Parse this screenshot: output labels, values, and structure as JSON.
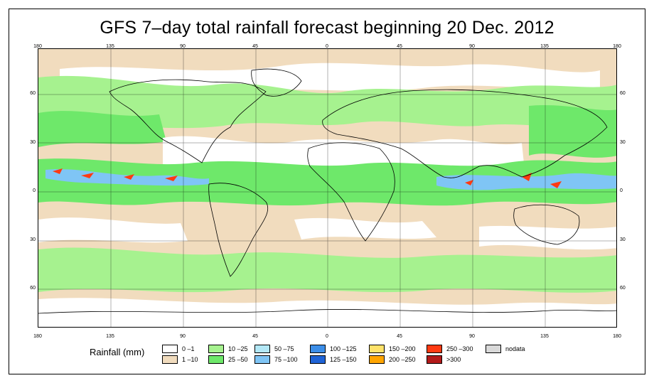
{
  "title": "GFS 7–day total rainfall forecast beginning 20 Dec. 2012",
  "x_ticks_top": [
    "180",
    "135",
    "90",
    "45",
    "0",
    "45",
    "90",
    "135",
    "180"
  ],
  "x_ticks_bottom": [
    "180",
    "135",
    "90",
    "45",
    "0",
    "45",
    "90",
    "135",
    "180"
  ],
  "y_ticks_left": [
    "60",
    "30",
    "0",
    "30",
    "60"
  ],
  "y_ticks_right": [
    "60",
    "30",
    "0",
    "30",
    "60"
  ],
  "legend": {
    "title": "Rainfall (mm)",
    "items": [
      {
        "label": "0 –1",
        "color": "#ffffff"
      },
      {
        "label": "1 –10",
        "color": "#f1dcbe"
      },
      {
        "label": "10 –25",
        "color": "#a6f28f"
      },
      {
        "label": "25 –50",
        "color": "#6ee86a"
      },
      {
        "label": "50 –75",
        "color": "#b3e8f7"
      },
      {
        "label": "75 –100",
        "color": "#7fc5f5"
      },
      {
        "label": "100 –125",
        "color": "#3c8ee8"
      },
      {
        "label": "125 –150",
        "color": "#1f63d6"
      },
      {
        "label": "150 –200",
        "color": "#ffe26a"
      },
      {
        "label": "200 –250",
        "color": "#ffa500"
      },
      {
        "label": "250 –300",
        "color": "#ff3a12"
      },
      {
        "label": ">300",
        "color": "#b31a1a"
      },
      {
        "label": "nodata",
        "color": "#d9d9d9"
      }
    ]
  }
}
